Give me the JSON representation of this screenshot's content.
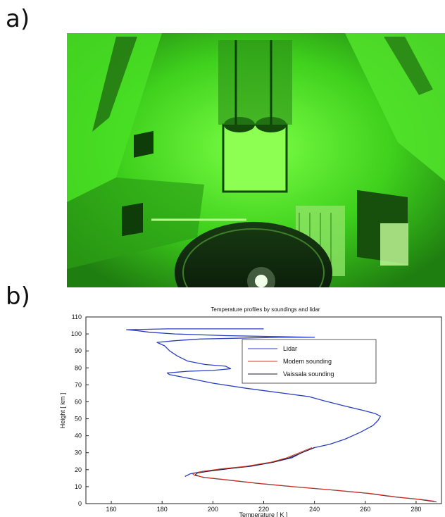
{
  "labels": {
    "panel_a": "a)",
    "panel_b": "b)"
  },
  "photo": {
    "tint": "#39c41c",
    "content": "green-lit lidar laboratory with telescope mirror"
  },
  "chart_data": {
    "type": "line",
    "title": "Temperature profiles by soundings and lidar",
    "xlabel": "Temperature [ K ]",
    "ylabel": "Height [ km ]",
    "xlim": [
      150,
      290
    ],
    "ylim": [
      0,
      110
    ],
    "xticks": [
      160,
      180,
      200,
      220,
      240,
      260,
      280
    ],
    "yticks": [
      0,
      10,
      20,
      30,
      40,
      50,
      60,
      70,
      80,
      90,
      100,
      110
    ],
    "grid": false,
    "legend_position": "upper-right",
    "colors": {
      "lidar": "#2a3fbf",
      "modem": "#e03a2c",
      "vaissala": "#1b1b2b"
    },
    "series": [
      {
        "name": "Lidar",
        "points": [
          [
            189,
            16
          ],
          [
            191,
            17.5
          ],
          [
            196,
            19
          ],
          [
            205,
            20.5
          ],
          [
            215,
            22
          ],
          [
            224,
            24.5
          ],
          [
            231,
            27
          ],
          [
            235,
            30
          ],
          [
            240,
            33
          ],
          [
            246,
            35
          ],
          [
            252,
            38
          ],
          [
            258,
            42
          ],
          [
            263,
            46
          ],
          [
            265,
            49
          ],
          [
            266,
            51.5
          ],
          [
            264,
            53
          ],
          [
            259,
            55
          ],
          [
            252,
            57.5
          ],
          [
            244,
            60.5
          ],
          [
            238,
            63
          ],
          [
            228,
            65
          ],
          [
            213,
            68
          ],
          [
            200,
            71
          ],
          [
            190,
            74
          ],
          [
            183,
            76
          ],
          [
            182,
            77
          ],
          [
            190,
            78
          ],
          [
            200,
            78.5
          ],
          [
            207,
            79.5
          ],
          [
            205,
            81
          ],
          [
            197,
            82
          ],
          [
            190,
            84
          ],
          [
            186,
            87
          ],
          [
            183,
            90
          ],
          [
            181,
            93
          ],
          [
            178,
            95
          ],
          [
            185,
            96
          ],
          [
            195,
            97
          ],
          [
            226,
            98
          ],
          [
            240,
            98
          ],
          [
            205,
            99
          ],
          [
            185,
            100
          ],
          [
            175,
            101
          ],
          [
            170,
            102
          ],
          [
            166,
            102.5
          ],
          [
            182,
            103
          ],
          [
            220,
            103
          ]
        ]
      },
      {
        "name": "Modem sounding",
        "points": [
          [
            287,
            1.5
          ],
          [
            282,
            2.5
          ],
          [
            272,
            4
          ],
          [
            262,
            6
          ],
          [
            248,
            8
          ],
          [
            232,
            10
          ],
          [
            218,
            12
          ],
          [
            206,
            14
          ],
          [
            197,
            15.5
          ],
          [
            193,
            16.5
          ],
          [
            192,
            17.5
          ],
          [
            196,
            19
          ],
          [
            203,
            20.5
          ],
          [
            213,
            22
          ],
          [
            223,
            24.5
          ],
          [
            229,
            27
          ],
          [
            234,
            30
          ],
          [
            239,
            33
          ]
        ]
      },
      {
        "name": "Vaissala sounding",
        "points": [
          [
            288,
            1
          ],
          [
            281,
            2.5
          ],
          [
            271,
            4
          ],
          [
            261,
            6
          ],
          [
            247,
            8
          ],
          [
            231,
            10
          ],
          [
            217,
            12
          ],
          [
            205,
            14
          ],
          [
            196,
            15.5
          ],
          [
            193,
            17
          ],
          [
            194,
            18
          ],
          [
            198,
            19
          ],
          [
            206,
            20.5
          ],
          [
            214,
            22
          ],
          [
            224,
            24.5
          ],
          [
            230,
            27
          ],
          [
            235,
            30
          ],
          [
            240,
            33
          ]
        ]
      }
    ]
  }
}
